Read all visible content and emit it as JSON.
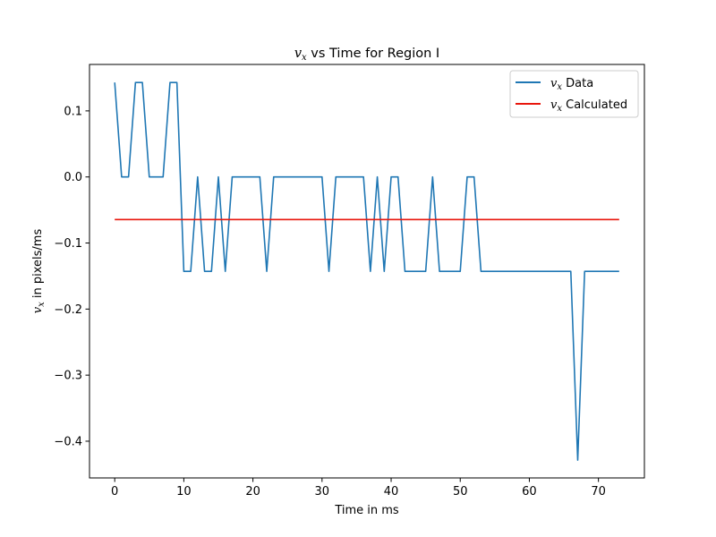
{
  "chart_data": {
    "type": "line",
    "title": {
      "var": "v",
      "sub": "x",
      "rest": " vs Time for Region I"
    },
    "xlabel": "Time in ms",
    "ylabel": {
      "var": "v",
      "sub": "x",
      "rest": " in pixels/ms"
    },
    "xlim": [
      -3.65,
      76.65
    ],
    "ylim": [
      -0.4556,
      0.1703
    ],
    "xticks": [
      0,
      10,
      20,
      30,
      40,
      50,
      60,
      70
    ],
    "xtick_labels": [
      "0",
      "10",
      "20",
      "30",
      "40",
      "50",
      "60",
      "70"
    ],
    "yticks": [
      0.1,
      0.0,
      -0.1,
      -0.2,
      -0.3,
      -0.4
    ],
    "ytick_labels": [
      "0.1",
      "0.0",
      "−0.1",
      "−0.2",
      "−0.3",
      "−0.4"
    ],
    "grid": false,
    "legend_position": "top-right",
    "series": [
      {
        "name": {
          "var": "v",
          "sub": "x",
          "rest": " Data"
        },
        "color": "#1f77b4",
        "x": [
          0,
          1,
          2,
          3,
          4,
          5,
          6,
          7,
          8,
          9,
          10,
          11,
          12,
          13,
          14,
          15,
          16,
          17,
          18,
          19,
          20,
          21,
          22,
          23,
          24,
          25,
          26,
          27,
          28,
          29,
          30,
          31,
          32,
          33,
          34,
          35,
          36,
          37,
          38,
          39,
          40,
          41,
          42,
          43,
          44,
          45,
          46,
          47,
          48,
          49,
          50,
          51,
          52,
          53,
          54,
          55,
          56,
          57,
          58,
          59,
          60,
          61,
          62,
          63,
          64,
          65,
          66,
          67,
          68,
          69,
          70,
          71,
          72,
          73
        ],
        "y": [
          0.1429,
          0,
          0,
          0.1429,
          0.1429,
          0,
          0,
          0,
          0.1429,
          0.1429,
          -0.1429,
          -0.1429,
          0,
          -0.1429,
          -0.1429,
          0,
          -0.1429,
          0,
          0,
          0,
          0,
          0,
          -0.1429,
          0,
          0,
          0,
          0,
          0,
          0,
          0,
          0,
          -0.1429,
          0,
          0,
          0,
          0,
          0,
          -0.1429,
          0,
          -0.1429,
          0,
          0,
          -0.1429,
          -0.1429,
          -0.1429,
          -0.1429,
          0,
          -0.1429,
          -0.1429,
          -0.1429,
          -0.1429,
          0,
          0,
          -0.1429,
          -0.1429,
          -0.1429,
          -0.1429,
          -0.1429,
          -0.1429,
          -0.1429,
          -0.1429,
          -0.1429,
          -0.1429,
          -0.1429,
          -0.1429,
          -0.1429,
          -0.1429,
          -0.4286,
          -0.1429,
          -0.1429,
          -0.1429,
          -0.1429,
          -0.1429,
          -0.1429
        ]
      },
      {
        "name": {
          "var": "v",
          "sub": "x",
          "rest": " Calculated"
        },
        "color": "#e8160c",
        "x": [
          0,
          73
        ],
        "y": [
          -0.0645,
          -0.0645
        ]
      }
    ]
  }
}
